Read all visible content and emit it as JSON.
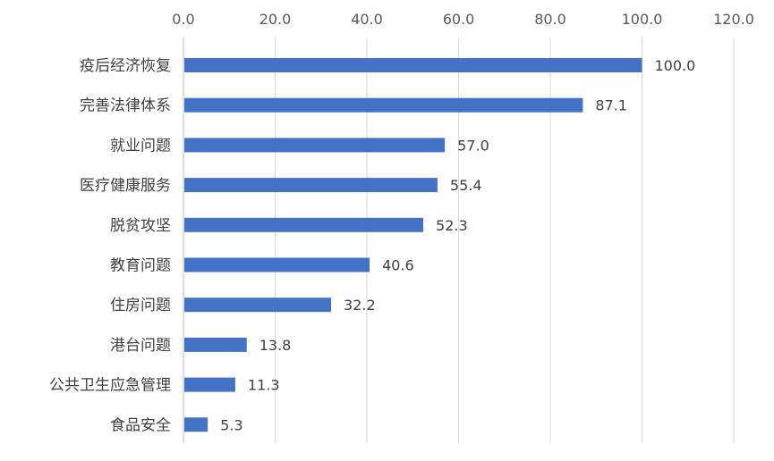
{
  "chart_data": {
    "type": "bar",
    "orientation": "horizontal",
    "categories": [
      "疫后经济恢复",
      "完善法律体系",
      "就业问题",
      "医疗健康服务",
      "脱贫攻坚",
      "教育问题",
      "住房问题",
      "港台问题",
      "公共卫生应急管理",
      "食品安全"
    ],
    "values": [
      100.0,
      87.1,
      57.0,
      55.4,
      52.3,
      40.6,
      32.2,
      13.8,
      11.3,
      5.3
    ],
    "value_labels": [
      "100.0",
      "87.1",
      "57.0",
      "55.4",
      "52.3",
      "40.6",
      "32.2",
      "13.8",
      "11.3",
      "5.3"
    ],
    "xlim": [
      0,
      120
    ],
    "x_ticks": [
      "0.0",
      "20.0",
      "40.0",
      "60.0",
      "80.0",
      "100.0",
      "120.0"
    ],
    "tick_axis_position": "top",
    "grid": true,
    "legend": "none",
    "bar_color": "#4472c4",
    "title": "",
    "xlabel": "",
    "ylabel": ""
  }
}
